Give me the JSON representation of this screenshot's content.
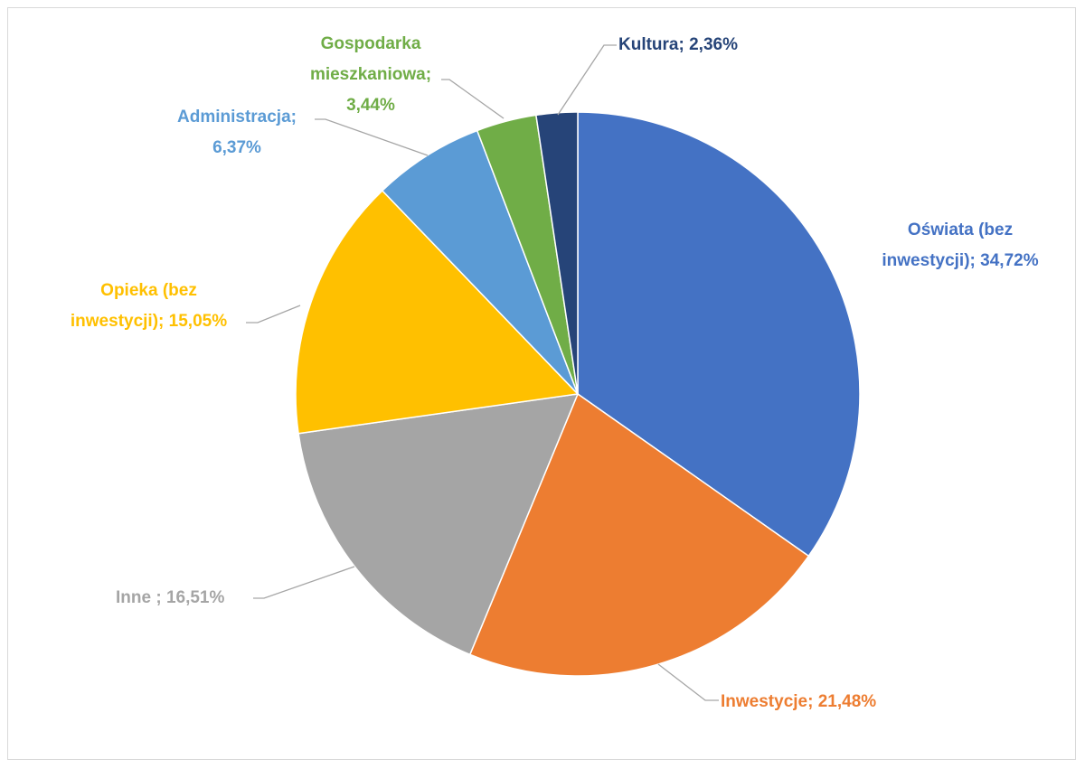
{
  "chart_data": {
    "type": "pie",
    "categories": [
      "Oświata (bez inwestycji);",
      "Inwestycje;",
      "Inne ;",
      "Opieka (bez inwestycji);",
      "Administracja;",
      "Gospodarka mieszkaniowa;",
      "Kultura;"
    ],
    "values": [
      34.72,
      21.48,
      16.51,
      15.05,
      6.37,
      3.44,
      2.36
    ],
    "value_labels": [
      "34,72%",
      "21,48%",
      "16,51%",
      "15,05%",
      "6,37%",
      "3,44%",
      "2,36%"
    ],
    "colors": [
      "#4472c4",
      "#ed7d31",
      "#a5a5a5",
      "#ffc000",
      "#5b9bd5",
      "#70ad47",
      "#264478"
    ]
  }
}
